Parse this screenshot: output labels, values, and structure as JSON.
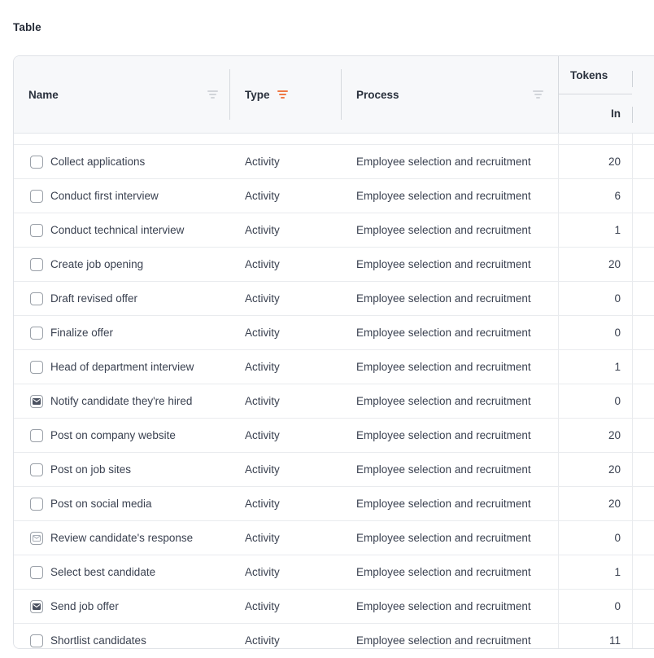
{
  "page": {
    "title": "Table"
  },
  "table": {
    "columns": {
      "name": {
        "label": "Name",
        "filter_icon": "filter-icon",
        "filter_active": false
      },
      "type": {
        "label": "Type",
        "filter_icon": "filter-icon",
        "filter_active": true
      },
      "process": {
        "label": "Process",
        "filter_icon": "filter-icon",
        "filter_active": false
      },
      "tokens": {
        "label": "Tokens",
        "sub_columns": [
          {
            "label": "In"
          }
        ]
      }
    },
    "rows": [
      {
        "icon": "task",
        "name": "Collect applications",
        "type": "Activity",
        "process": "Employee selection and recruitment",
        "tokens_in": "20"
      },
      {
        "icon": "task",
        "name": "Conduct first interview",
        "type": "Activity",
        "process": "Employee selection and recruitment",
        "tokens_in": "6"
      },
      {
        "icon": "task",
        "name": "Conduct technical interview",
        "type": "Activity",
        "process": "Employee selection and recruitment",
        "tokens_in": "1"
      },
      {
        "icon": "task",
        "name": "Create job opening",
        "type": "Activity",
        "process": "Employee selection and recruitment",
        "tokens_in": "20"
      },
      {
        "icon": "task",
        "name": "Draft revised offer",
        "type": "Activity",
        "process": "Employee selection and recruitment",
        "tokens_in": "0"
      },
      {
        "icon": "task",
        "name": "Finalize offer",
        "type": "Activity",
        "process": "Employee selection and recruitment",
        "tokens_in": "0"
      },
      {
        "icon": "task",
        "name": "Head of department interview",
        "type": "Activity",
        "process": "Employee selection and recruitment",
        "tokens_in": "1"
      },
      {
        "icon": "send-message",
        "name": "Notify candidate they're hired",
        "type": "Activity",
        "process": "Employee selection and recruitment",
        "tokens_in": "0"
      },
      {
        "icon": "task",
        "name": "Post on company website",
        "type": "Activity",
        "process": "Employee selection and recruitment",
        "tokens_in": "20"
      },
      {
        "icon": "task",
        "name": "Post on job sites",
        "type": "Activity",
        "process": "Employee selection and recruitment",
        "tokens_in": "20"
      },
      {
        "icon": "task",
        "name": "Post on social media",
        "type": "Activity",
        "process": "Employee selection and recruitment",
        "tokens_in": "20"
      },
      {
        "icon": "receive-message",
        "name": "Review candidate's response",
        "type": "Activity",
        "process": "Employee selection and recruitment",
        "tokens_in": "0"
      },
      {
        "icon": "task",
        "name": "Select best candidate",
        "type": "Activity",
        "process": "Employee selection and recruitment",
        "tokens_in": "1"
      },
      {
        "icon": "send-message",
        "name": "Send job offer",
        "type": "Activity",
        "process": "Employee selection and recruitment",
        "tokens_in": "0"
      },
      {
        "icon": "task",
        "name": "Shortlist candidates",
        "type": "Activity",
        "process": "Employee selection and recruitment",
        "tokens_in": "11"
      }
    ]
  },
  "colors": {
    "filter_active": "#ef7a47",
    "filter_inactive": "#d2d5da",
    "header_bg": "#f7f8fa",
    "header_text": "#29303c",
    "body_text": "#3a4150",
    "border": "#e9ebee"
  }
}
